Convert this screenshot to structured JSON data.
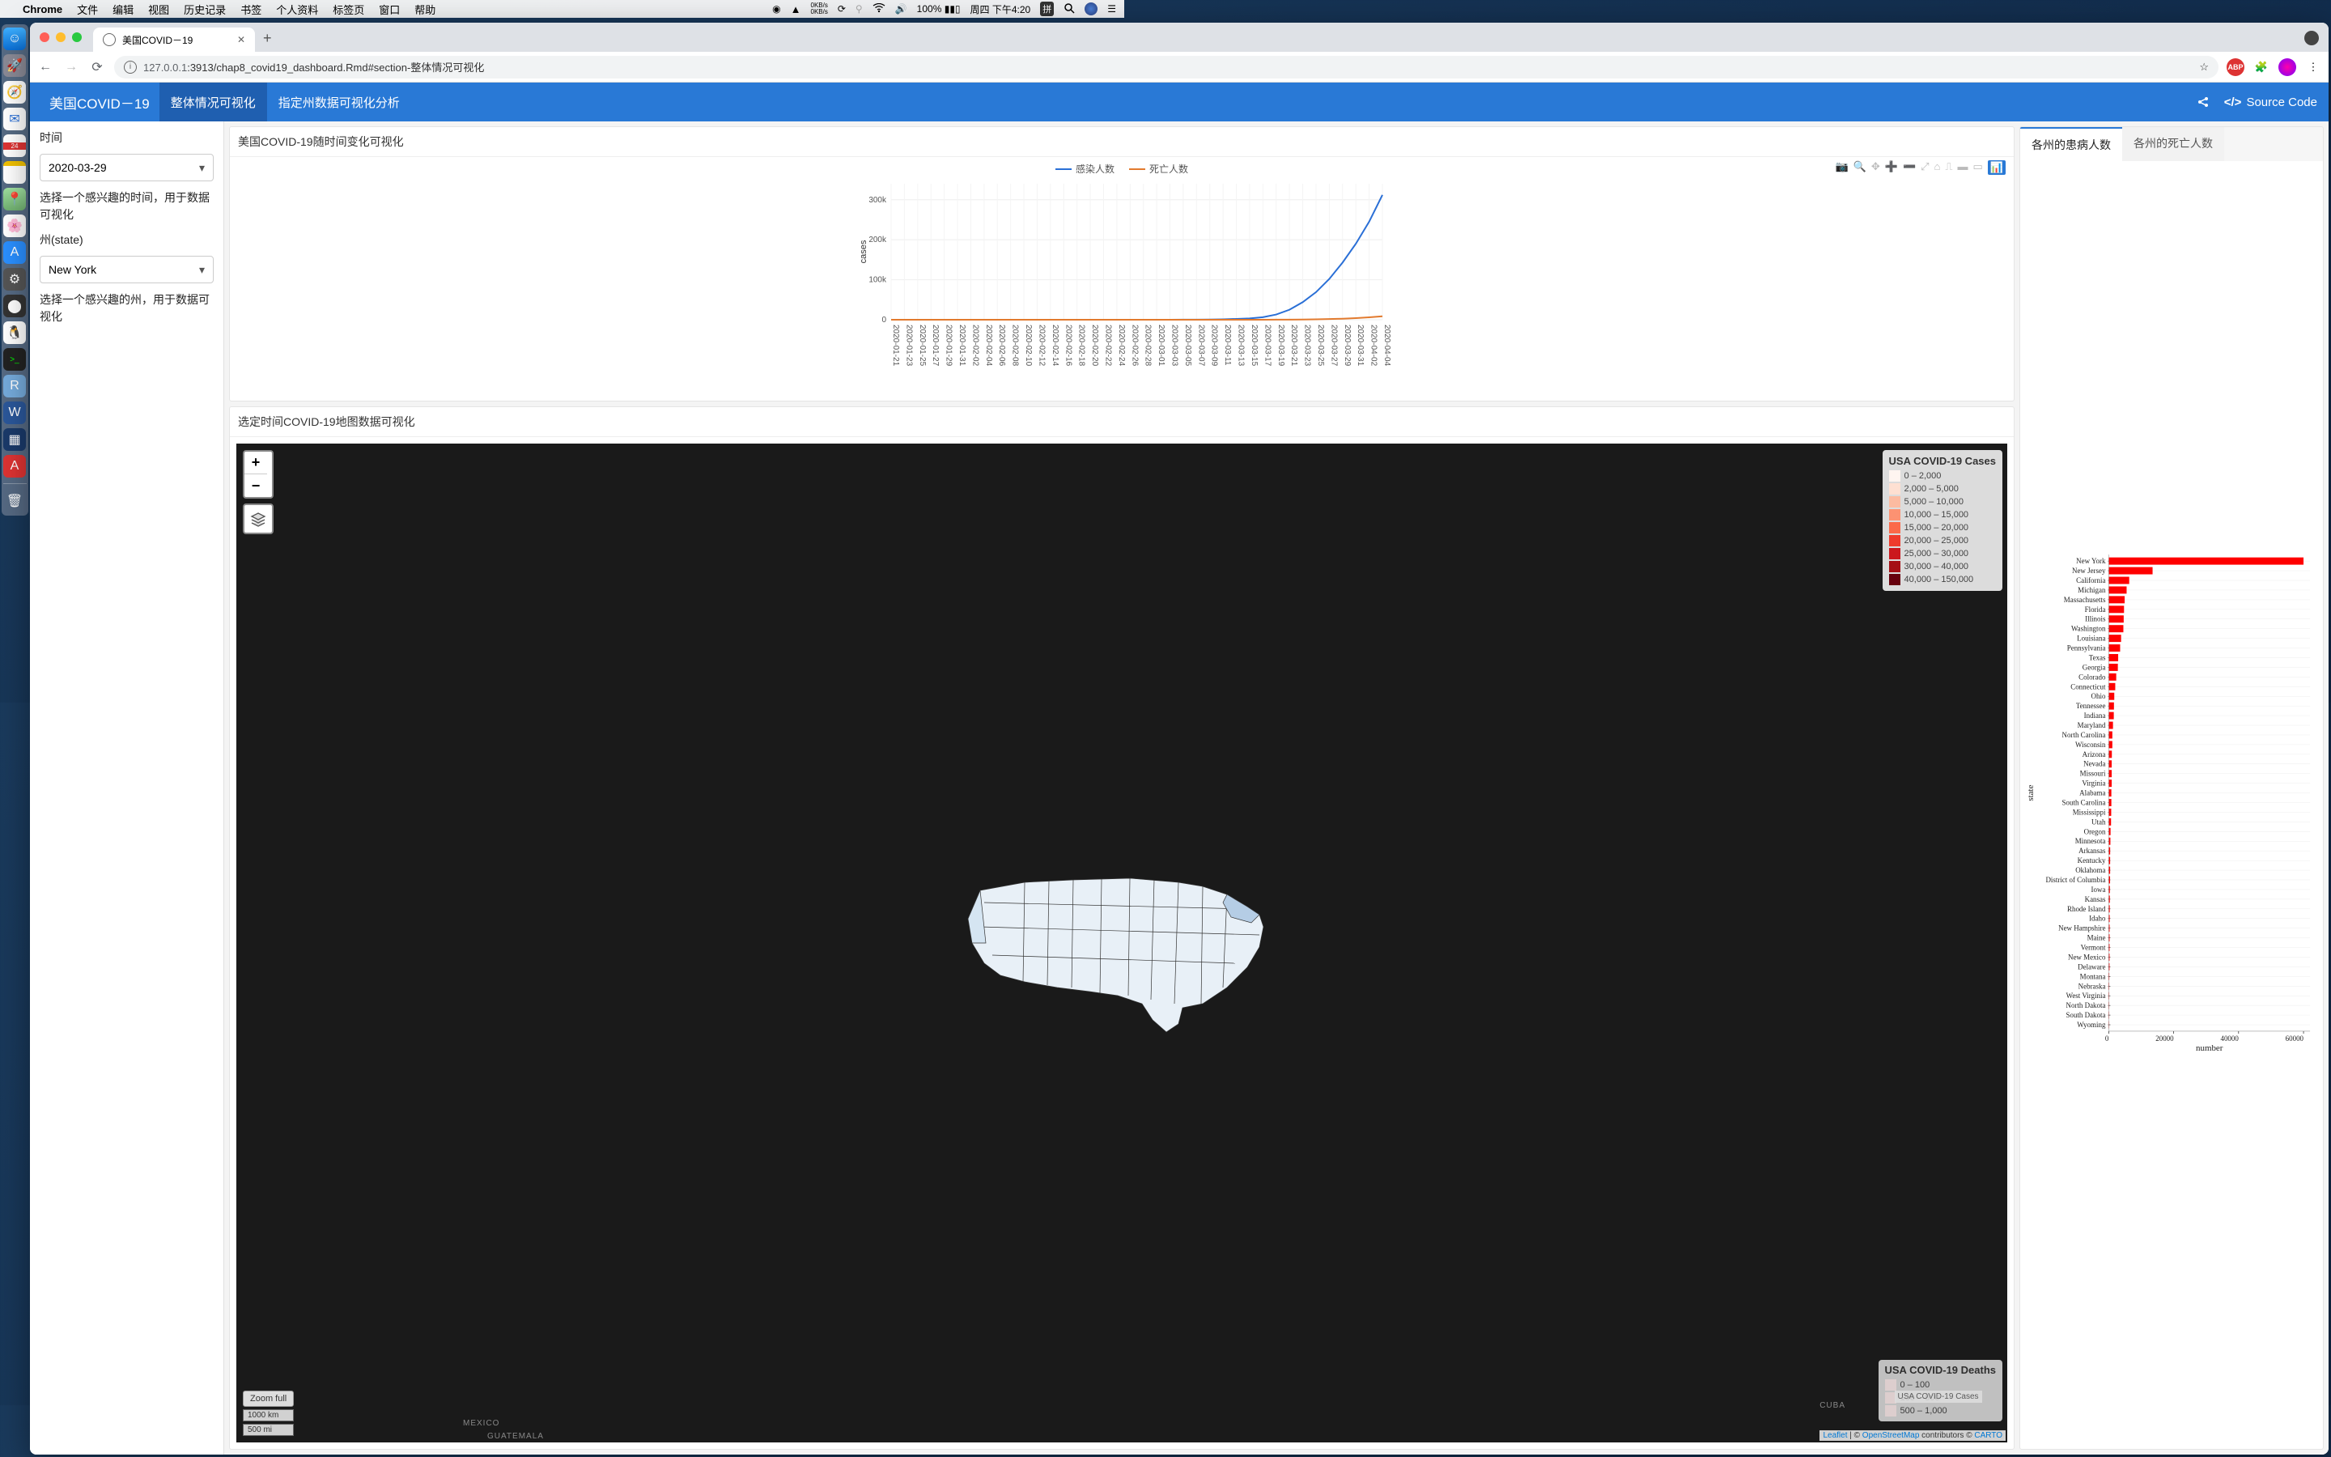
{
  "menubar": {
    "app": "Chrome",
    "items": [
      "文件",
      "编辑",
      "视图",
      "历史记录",
      "书签",
      "个人资料",
      "标签页",
      "窗口",
      "帮助"
    ],
    "net_up": "0KB/s",
    "net_down": "0KB/s",
    "battery": "100%",
    "clock": "周四 下午4:20",
    "ime": "拼"
  },
  "tab": {
    "title": "美国COVID－19"
  },
  "url": {
    "host": "127.0.0.1",
    "port": ":3913",
    "path": "/chap8_covid19_dashboard.Rmd#section-整体情况可视化"
  },
  "dashboard": {
    "title": "美国COVID－19",
    "tabs": [
      "整体情况可视化",
      "指定州数据可视化分析"
    ],
    "source_code": "Source Code"
  },
  "sidebar": {
    "time_label": "时间",
    "time_value": "2020-03-29",
    "time_help": "选择一个感兴趣的时间，用于数据可视化",
    "state_label": "州(state)",
    "state_value": "New York",
    "state_help": "选择一个感兴趣的州，用于数据可视化"
  },
  "linechart": {
    "title": "美国COVID-19随时间变化可视化",
    "legend": {
      "cases": "感染人数",
      "deaths": "死亡人数"
    },
    "cases_color": "#2a6fd6",
    "deaths_color": "#e27a2e",
    "ylabel": "cases",
    "yticks": [
      "0",
      "100k",
      "200k",
      "300k"
    ],
    "ymax": 340000,
    "xdates": [
      "2020-01-21",
      "2020-01-23",
      "2020-01-25",
      "2020-01-27",
      "2020-01-29",
      "2020-01-31",
      "2020-02-02",
      "2020-02-04",
      "2020-02-06",
      "2020-02-08",
      "2020-02-10",
      "2020-02-12",
      "2020-02-14",
      "2020-02-16",
      "2020-02-18",
      "2020-02-20",
      "2020-02-22",
      "2020-02-24",
      "2020-02-26",
      "2020-02-28",
      "2020-03-01",
      "2020-03-03",
      "2020-03-05",
      "2020-03-07",
      "2020-03-09",
      "2020-03-11",
      "2020-03-13",
      "2020-03-15",
      "2020-03-17",
      "2020-03-19",
      "2020-03-21",
      "2020-03-23",
      "2020-03-25",
      "2020-03-27",
      "2020-03-29",
      "2020-03-31",
      "2020-04-02",
      "2020-04-04"
    ],
    "cases_series": [
      1,
      1,
      2,
      5,
      5,
      7,
      8,
      11,
      11,
      11,
      11,
      12,
      12,
      12,
      12,
      13,
      13,
      13,
      15,
      19,
      30,
      80,
      159,
      335,
      539,
      1100,
      2100,
      3400,
      6300,
      13000,
      25000,
      44000,
      69000,
      102000,
      143000,
      190000,
      245000,
      312000
    ],
    "deaths_series": [
      0,
      0,
      0,
      0,
      0,
      0,
      0,
      0,
      0,
      0,
      0,
      0,
      0,
      0,
      0,
      0,
      0,
      0,
      0,
      0,
      1,
      6,
      11,
      17,
      22,
      31,
      48,
      65,
      110,
      195,
      301,
      550,
      1050,
      1700,
      2600,
      4100,
      6000,
      8500
    ]
  },
  "map": {
    "title": "选定时间COVID-19地图数据可视化",
    "legend1_title": "USA COVID-19 Cases",
    "legend1": [
      {
        "c": "#fff5f0",
        "l": "0 – 2,000"
      },
      {
        "c": "#fee0d2",
        "l": "2,000 – 5,000"
      },
      {
        "c": "#fcbba1",
        "l": "5,000 – 10,000"
      },
      {
        "c": "#fc9272",
        "l": "10,000 – 15,000"
      },
      {
        "c": "#fb6a4a",
        "l": "15,000 – 20,000"
      },
      {
        "c": "#ef3b2c",
        "l": "20,000 – 25,000"
      },
      {
        "c": "#cb181d",
        "l": "25,000 – 30,000"
      },
      {
        "c": "#a50f15",
        "l": "30,000 – 40,000"
      },
      {
        "c": "#67000d",
        "l": "40,000 – 150,000"
      }
    ],
    "legend2_title": "USA COVID-19 Deaths",
    "legend2": [
      {
        "l": "0 – 100"
      },
      {
        "l": "100 – 500"
      },
      {
        "l": "500 – 1,000"
      }
    ],
    "zoom_full": "Zoom full",
    "scale_km": "1000 km",
    "scale_mi": "500 mi",
    "attrib": {
      "leaflet": "Leaflet",
      "sep": " | © ",
      "osm": "OpenStreetMap",
      "mid": " contributors © ",
      "carto": "CARTO"
    },
    "labels": {
      "mexico": "MEXICO",
      "cuba": "CUBA",
      "guatemala": "GUATEMALA"
    },
    "inner_label": "USA COVID-19 Cases"
  },
  "barchart": {
    "tabs": [
      "各州的患病人数",
      "各州的死亡人数"
    ],
    "bar_color": "#ff0000",
    "xlabel": "number",
    "ylabel": "state",
    "xmax": 62000,
    "xticks": [
      0,
      20000,
      40000,
      60000
    ],
    "states": [
      {
        "n": "New York",
        "v": 60000
      },
      {
        "n": "New Jersey",
        "v": 13500
      },
      {
        "n": "California",
        "v": 6300
      },
      {
        "n": "Michigan",
        "v": 5500
      },
      {
        "n": "Massachusetts",
        "v": 4900
      },
      {
        "n": "Florida",
        "v": 4700
      },
      {
        "n": "Illinois",
        "v": 4600
      },
      {
        "n": "Washington",
        "v": 4500
      },
      {
        "n": "Louisiana",
        "v": 3800
      },
      {
        "n": "Pennsylvania",
        "v": 3500
      },
      {
        "n": "Texas",
        "v": 2900
      },
      {
        "n": "Georgia",
        "v": 2800
      },
      {
        "n": "Colorado",
        "v": 2300
      },
      {
        "n": "Connecticut",
        "v": 2000
      },
      {
        "n": "Ohio",
        "v": 1700
      },
      {
        "n": "Tennessee",
        "v": 1600
      },
      {
        "n": "Indiana",
        "v": 1550
      },
      {
        "n": "Maryland",
        "v": 1300
      },
      {
        "n": "North Carolina",
        "v": 1100
      },
      {
        "n": "Wisconsin",
        "v": 1100
      },
      {
        "n": "Arizona",
        "v": 950
      },
      {
        "n": "Nevada",
        "v": 900
      },
      {
        "n": "Missouri",
        "v": 900
      },
      {
        "n": "Virginia",
        "v": 900
      },
      {
        "n": "Alabama",
        "v": 800
      },
      {
        "n": "South Carolina",
        "v": 800
      },
      {
        "n": "Mississippi",
        "v": 750
      },
      {
        "n": "Utah",
        "v": 700
      },
      {
        "n": "Oregon",
        "v": 550
      },
      {
        "n": "Minnesota",
        "v": 500
      },
      {
        "n": "Arkansas",
        "v": 430
      },
      {
        "n": "Kentucky",
        "v": 420
      },
      {
        "n": "Oklahoma",
        "v": 420
      },
      {
        "n": "District of Columbia",
        "v": 400
      },
      {
        "n": "Iowa",
        "v": 340
      },
      {
        "n": "Kansas",
        "v": 330
      },
      {
        "n": "Rhode Island",
        "v": 300
      },
      {
        "n": "Idaho",
        "v": 280
      },
      {
        "n": "New Hampshire",
        "v": 260
      },
      {
        "n": "Maine",
        "v": 250
      },
      {
        "n": "Vermont",
        "v": 240
      },
      {
        "n": "New Mexico",
        "v": 240
      },
      {
        "n": "Delaware",
        "v": 230
      },
      {
        "n": "Montana",
        "v": 160
      },
      {
        "n": "Nebraska",
        "v": 130
      },
      {
        "n": "West Virginia",
        "v": 120
      },
      {
        "n": "North Dakota",
        "v": 100
      },
      {
        "n": "South Dakota",
        "v": 100
      },
      {
        "n": "Wyoming",
        "v": 90
      }
    ]
  }
}
